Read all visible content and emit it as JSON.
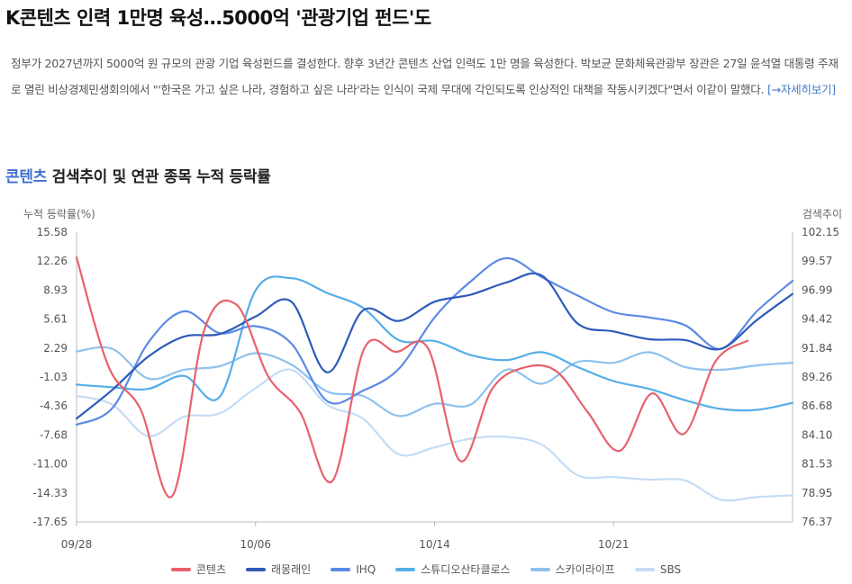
{
  "article": {
    "headline": "K콘텐츠 인력 1만명 육성…5000억 '관광기업 펀드'도",
    "body": "정부가 2027년까지 5000억 원 규모의 관광 기업 육성펀드를 결성한다. 향후 3년간 콘텐츠 산업 인력도 1만 명을 육성한다. 박보균 문화체육관광부 장관은 27일 윤석열 대통령 주재로 열린 비상경제민생회의에서 \"'한국은 가고 싶은 나라, 경험하고 싶은 나라'라는 인식이 국제 무대에 각인되도록 인상적인 대책을 작동시키겠다\"면서 이같이 말했다. ",
    "more_link": "[→자세히보기]"
  },
  "section": {
    "title_accent": "콘텐츠",
    "title_rest": " 검색추이 및 연관 종목 누적 등락률"
  },
  "chart_data": {
    "type": "line",
    "ylabel_left": "누적 등락률(%)",
    "ylabel_right": "검색추이",
    "left_ticks": [
      "15.58",
      "12.26",
      "8.93",
      "5.61",
      "2.29",
      "-1.03",
      "-4.36",
      "-7.68",
      "-11.00",
      "-14.33",
      "-17.65"
    ],
    "right_ticks": [
      "102.15",
      "99.57",
      "96.99",
      "94.42",
      "91.84",
      "89.26",
      "86.68",
      "84.10",
      "81.53",
      "78.95",
      "76.37"
    ],
    "ylim_left": [
      -17.65,
      15.58
    ],
    "ylim_right": [
      76.37,
      102.15
    ],
    "x_ticks": [
      "09/28",
      "10/06",
      "10/14",
      "10/21"
    ],
    "x_tick_index": [
      0,
      8,
      16,
      24
    ],
    "n_points": 33,
    "grid": false,
    "legend_position": "bottom",
    "series": [
      {
        "name": "콘텐츠",
        "color": "#e8616d",
        "axis": "right",
        "z": 6,
        "values": [
          99.9,
          90.2,
          86.4,
          78.7,
          93.5,
          95.7,
          89.3,
          86.1,
          80.0,
          91.8,
          91.5,
          91.8,
          81.8,
          88.2,
          90.1,
          89.8,
          86.1,
          82.7,
          87.8,
          84.2,
          90.7,
          92.5
        ]
      },
      {
        "name": "래몽래인",
        "color": "#2e5bb8",
        "axis": "left",
        "z": 5,
        "values": [
          -5.8,
          -2.5,
          1.3,
          3.6,
          3.9,
          5.9,
          7.6,
          -0.5,
          6.6,
          5.4,
          7.6,
          8.4,
          9.8,
          10.6,
          5.1,
          4.2,
          3.3,
          3.2,
          2.2,
          5.5,
          8.5
        ]
      },
      {
        "name": "IHQ",
        "color": "#5b8ae6",
        "axis": "left",
        "z": 4,
        "values": [
          -6.5,
          -4.6,
          2.9,
          6.5,
          4.0,
          4.8,
          2.8,
          -3.8,
          -2.6,
          -0.1,
          5.8,
          9.9,
          12.6,
          10.4,
          8.3,
          6.4,
          5.8,
          4.9,
          2.2,
          6.5,
          10.0
        ]
      },
      {
        "name": "스튜디오산타클로스",
        "color": "#55aee8",
        "axis": "left",
        "z": 3,
        "values": [
          -1.9,
          -2.2,
          -2.4,
          -0.9,
          -3.3,
          8.9,
          10.3,
          8.6,
          6.9,
          3.2,
          3.1,
          1.5,
          0.9,
          1.8,
          0.1,
          -1.5,
          -2.4,
          -3.7,
          -4.7,
          -4.8,
          -4.0
        ]
      },
      {
        "name": "스카이라이프",
        "color": "#8ec1ee",
        "axis": "left",
        "z": 2,
        "values": [
          1.9,
          2.2,
          -1.2,
          -0.2,
          0.2,
          1.7,
          0.4,
          -2.7,
          -3.2,
          -5.5,
          -4.1,
          -4.2,
          -0.2,
          -1.8,
          0.7,
          0.6,
          1.8,
          0.1,
          -0.2,
          0.3,
          0.6
        ]
      },
      {
        "name": "SBS",
        "color": "#c4dcf4",
        "axis": "left",
        "z": 1,
        "values": [
          -3.2,
          -4.2,
          -7.8,
          -5.6,
          -5.2,
          -2.3,
          -0.2,
          -4.2,
          -5.8,
          -9.9,
          -9.1,
          -8.1,
          -7.9,
          -8.8,
          -12.3,
          -12.5,
          -12.8,
          -12.9,
          -15.1,
          -14.8,
          -14.6
        ]
      }
    ]
  }
}
